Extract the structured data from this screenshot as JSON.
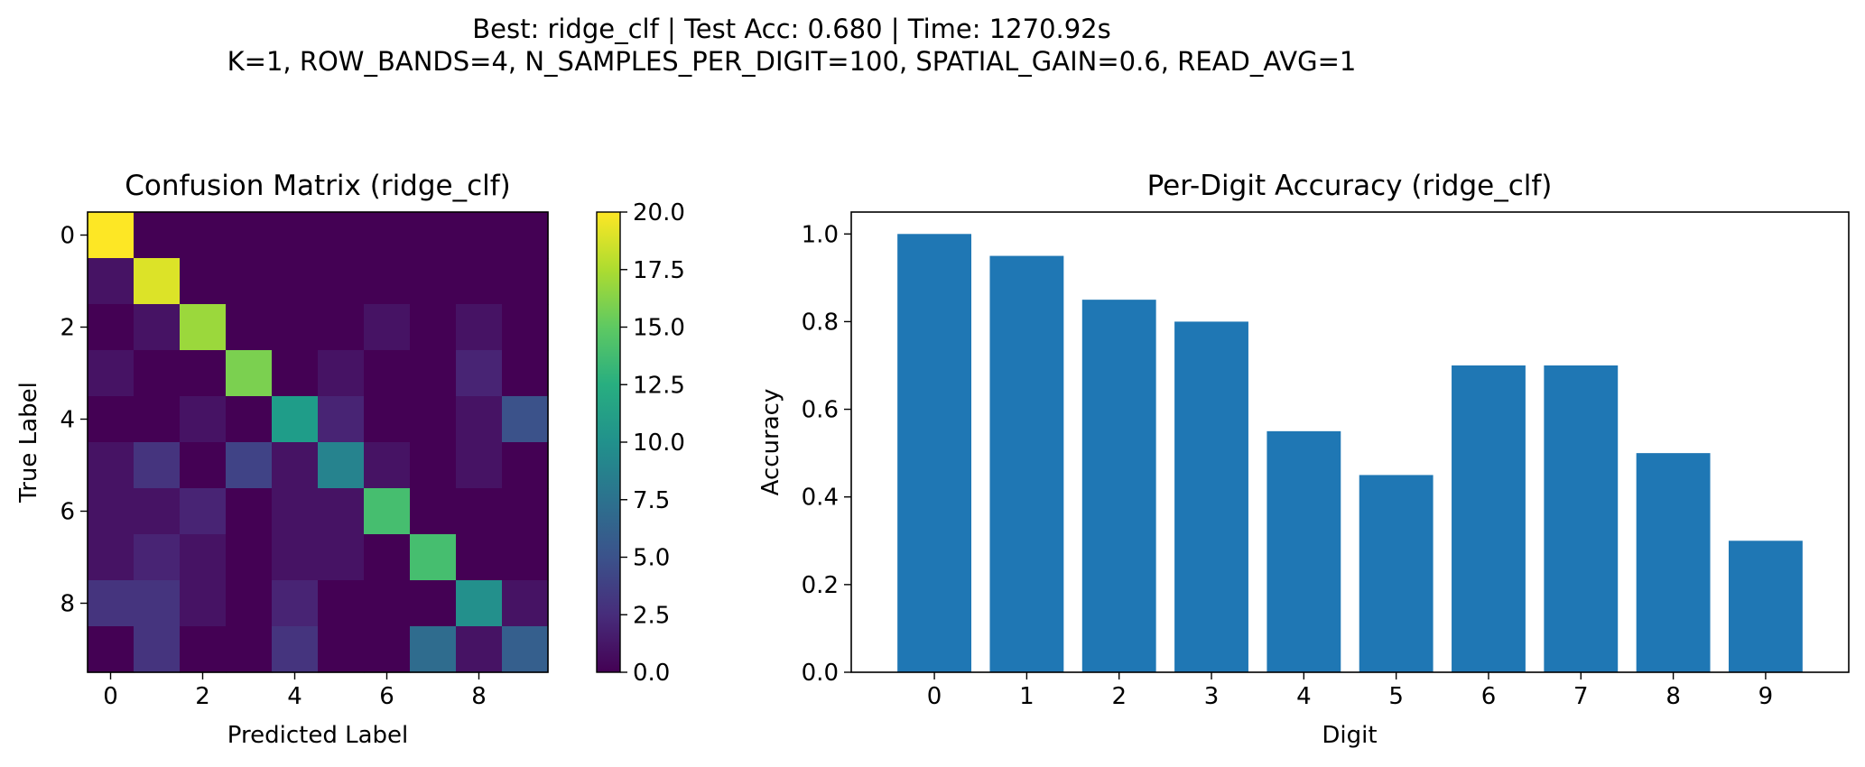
{
  "figure": {
    "suptitle_line1": "Best: ridge_clf  |  Test Acc: 0.680  |  Time: 1270.92s",
    "suptitle_line2": "K=1, ROW_BANDS=4, N_SAMPLES_PER_DIGIT=100, SPATIAL_GAIN=0.6, READ_AVG=1"
  },
  "chart_data": [
    {
      "type": "heatmap",
      "title": "Confusion Matrix (ridge_clf)",
      "xlabel": "Predicted Label",
      "ylabel": "True Label",
      "colormap": "viridis",
      "xticks": [
        "0",
        "2",
        "4",
        "6",
        "8"
      ],
      "yticks": [
        "0",
        "2",
        "4",
        "6",
        "8"
      ],
      "colorbar": {
        "range": [
          0,
          20
        ],
        "ticks": [
          "0.0",
          "2.5",
          "5.0",
          "7.5",
          "10.0",
          "12.5",
          "15.0",
          "17.5",
          "20.0"
        ]
      },
      "matrix": [
        [
          20,
          0,
          0,
          0,
          0,
          0,
          0,
          0,
          0,
          0
        ],
        [
          1,
          19,
          0,
          0,
          0,
          0,
          0,
          0,
          0,
          0
        ],
        [
          0,
          1,
          17,
          0,
          0,
          0,
          1,
          0,
          1,
          0
        ],
        [
          1,
          0,
          0,
          16,
          0,
          1,
          0,
          0,
          2,
          0
        ],
        [
          0,
          0,
          1,
          0,
          11,
          2,
          0,
          0,
          1,
          5
        ],
        [
          1,
          3,
          0,
          4,
          1,
          9,
          1,
          0,
          1,
          0
        ],
        [
          1,
          1,
          2,
          0,
          1,
          1,
          14,
          0,
          0,
          0
        ],
        [
          1,
          2,
          1,
          0,
          1,
          1,
          0,
          14,
          0,
          0
        ],
        [
          3,
          3,
          1,
          0,
          2,
          0,
          0,
          0,
          10,
          1
        ],
        [
          0,
          3,
          0,
          0,
          3,
          0,
          0,
          7,
          1,
          6
        ]
      ]
    },
    {
      "type": "bar",
      "title": "Per-Digit Accuracy (ridge_clf)",
      "xlabel": "Digit",
      "ylabel": "Accuracy",
      "categories": [
        "0",
        "1",
        "2",
        "3",
        "4",
        "5",
        "6",
        "7",
        "8",
        "9"
      ],
      "values": [
        1.0,
        0.95,
        0.85,
        0.8,
        0.55,
        0.45,
        0.7,
        0.7,
        0.5,
        0.3
      ],
      "ylim": [
        0,
        1.05
      ],
      "yticks": [
        "0.0",
        "0.2",
        "0.4",
        "0.6",
        "0.8",
        "1.0"
      ],
      "bar_color": "#1f77b4",
      "grid": false
    }
  ]
}
